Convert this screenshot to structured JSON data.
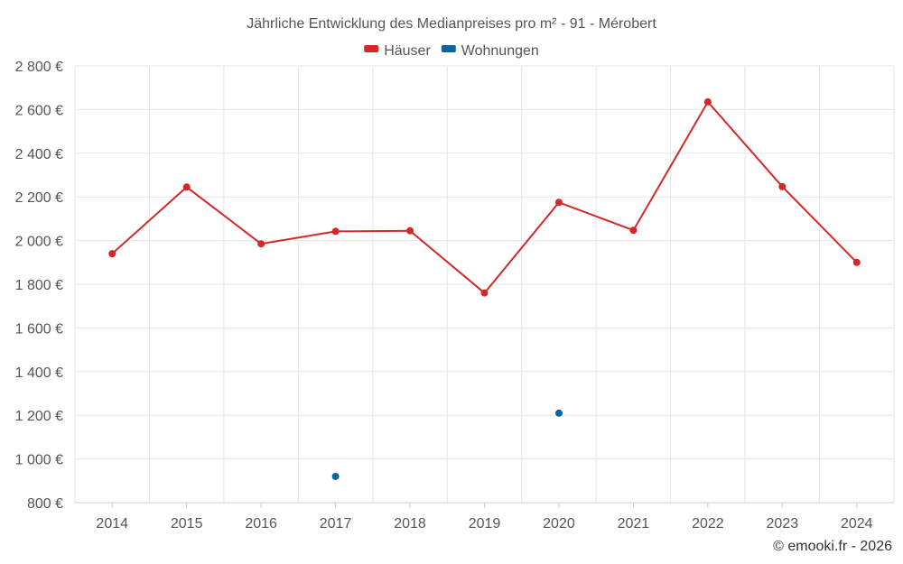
{
  "chart_data": {
    "type": "line",
    "title": "Jährliche Entwicklung des Medianpreises pro m² - 91 - Mérobert",
    "categories": [
      "2014",
      "2015",
      "2016",
      "2017",
      "2018",
      "2019",
      "2020",
      "2021",
      "2022",
      "2023",
      "2024"
    ],
    "series": [
      {
        "name": "Häuser",
        "color": "#d62728",
        "values": [
          1940,
          2245,
          1985,
          2042,
          2045,
          1760,
          2175,
          2047,
          2635,
          2247,
          1900
        ]
      },
      {
        "name": "Wohnungen",
        "color": "#0b64a0",
        "values": [
          null,
          null,
          null,
          920,
          null,
          null,
          1210,
          null,
          null,
          null,
          null
        ]
      }
    ],
    "ylim": [
      800,
      2800
    ],
    "yticks": [
      800,
      1000,
      1200,
      1400,
      1600,
      1800,
      2000,
      2200,
      2400,
      2600,
      2800
    ],
    "ytick_labels": [
      "800 €",
      "1 000 €",
      "1 200 €",
      "1 400 €",
      "1 600 €",
      "1 800 €",
      "2 000 €",
      "2 200 €",
      "2 400 €",
      "2 600 €",
      "2 800 €"
    ],
    "xlabel": "",
    "ylabel": "",
    "legend_position": "top-center",
    "grid": true,
    "credit": "© emooki.fr - 2026"
  }
}
